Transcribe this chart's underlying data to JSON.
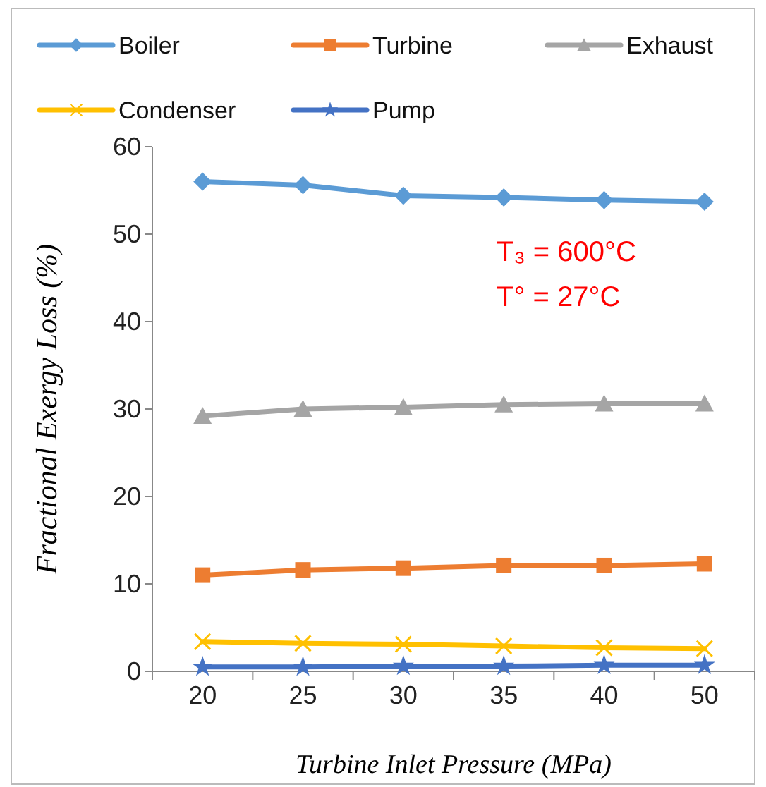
{
  "chart_data": {
    "type": "line",
    "xlabel": "Turbine Inlet Pressure (MPa)",
    "ylabel": "Fractional Exergy Loss (%)",
    "categories": [
      "20",
      "25",
      "30",
      "35",
      "40",
      "50"
    ],
    "ylim": [
      0,
      60
    ],
    "yticks": [
      0,
      10,
      20,
      30,
      40,
      50,
      60
    ],
    "grid": false,
    "legend": "top",
    "annotations": [
      "T₃ = 600°C",
      "T° =  27°C"
    ],
    "series": [
      {
        "name": "Boiler",
        "color": "#5b9bd5",
        "marker": "diamond",
        "values": [
          56.0,
          55.6,
          54.4,
          54.2,
          53.9,
          53.7
        ]
      },
      {
        "name": "Turbine",
        "color": "#ed7d31",
        "marker": "square",
        "values": [
          11.0,
          11.6,
          11.8,
          12.1,
          12.1,
          12.3
        ]
      },
      {
        "name": "Exhaust",
        "color": "#a5a5a5",
        "marker": "triangle",
        "values": [
          29.2,
          30.0,
          30.2,
          30.5,
          30.6,
          30.6
        ]
      },
      {
        "name": "Condenser",
        "color": "#ffc000",
        "marker": "cross",
        "values": [
          3.4,
          3.2,
          3.1,
          2.9,
          2.7,
          2.6
        ]
      },
      {
        "name": "Pump",
        "color": "#4472c4",
        "marker": "star",
        "values": [
          0.5,
          0.5,
          0.6,
          0.6,
          0.7,
          0.7
        ]
      }
    ]
  }
}
